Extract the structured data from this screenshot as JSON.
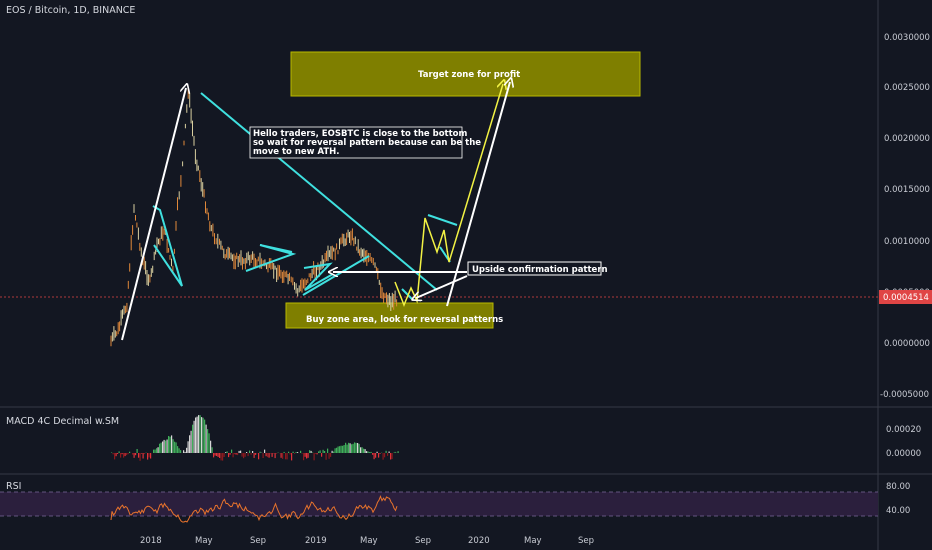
{
  "chart_title": "EOS / Bitcoin, 1D, BINANCE",
  "price_axis": {
    "ticks": [
      "0.0030000",
      "0.0025000",
      "0.0020000",
      "0.0015000",
      "0.0010000",
      "0.0005000",
      "0.0000000",
      "-0.0005000"
    ],
    "current_price": "0.0004514",
    "current_price_color": "#e04545"
  },
  "time_axis": {
    "labels": [
      "2018",
      "May",
      "Sep",
      "2019",
      "May",
      "Sep",
      "2020",
      "May",
      "Sep"
    ]
  },
  "annotations": {
    "target_zone": "Target zone for profit",
    "buy_zone": "Buy zone area, look for reversal patterns",
    "confirmation": "Upside confirmation pattern",
    "note_line1": "Hello traders, EOSBTC is close to the bottom",
    "note_line2": "so wait for reversal pattern because can be the",
    "note_line3": "move to new ATH."
  },
  "macd_panel": {
    "label": "MACD 4C Decimal w.SM",
    "ticks": [
      "0.00020",
      "0.00000"
    ]
  },
  "rsi_panel": {
    "label": "RSI",
    "ticks": [
      "80.00",
      "40.00"
    ]
  },
  "colors": {
    "background": "#131722",
    "candle_up": "#d9cfa0",
    "candle_down": "#e0883a",
    "trendline": "#3fe0df",
    "zone_fill": "#7f7f00",
    "zone_border": "#b8b800",
    "projection": "#f2f244",
    "rsi_line": "#e8732c",
    "rsi_band": "#2b1f3d"
  },
  "chart_data": {
    "type": "line",
    "series": [
      {
        "x": [
          "2017-12-01",
          "2017-12-15",
          "2018-01-01",
          "2018-01-15",
          "2018-02-01",
          "2018-02-15",
          "2018-03-01",
          "2018-03-15",
          "2018-04-01",
          "2018-04-10",
          "2018-04-20",
          "2018-05-01",
          "2018-05-15",
          "2018-06-01",
          "2018-06-15",
          "2018-07-01",
          "2018-07-15",
          "2018-08-01",
          "2018-08-15",
          "2018-09-01",
          "2018-09-15",
          "2018-10-01",
          "2018-10-15",
          "2018-11-01",
          "2018-11-15",
          "2018-12-01",
          "2018-12-15",
          "2019-01-01",
          "2019-01-15",
          "2019-02-01",
          "2019-02-15",
          "2019-03-01",
          "2019-03-15",
          "2019-04-01",
          "2019-04-15",
          "2019-05-01",
          "2019-05-15",
          "2019-06-01",
          "2019-06-15"
        ],
        "values": [
          5e-05,
          0.00015,
          0.0004,
          0.0013,
          0.0008,
          0.0006,
          0.00095,
          0.0011,
          0.0007,
          0.0013,
          0.0017,
          0.0024,
          0.0018,
          0.0014,
          0.0011,
          0.00095,
          0.00085,
          0.00082,
          0.0008,
          0.00083,
          0.0008,
          0.00076,
          0.00072,
          0.00068,
          0.00062,
          0.00052,
          0.0006,
          0.0007,
          0.00075,
          0.00085,
          0.0009,
          0.001,
          0.00105,
          0.0009,
          0.00085,
          0.00075,
          0.0005,
          0.00042,
          0.00045
        ]
      }
    ],
    "ylim": [
      -0.00055,
      0.0032
    ],
    "rsi_levels": [
      80,
      40
    ]
  }
}
